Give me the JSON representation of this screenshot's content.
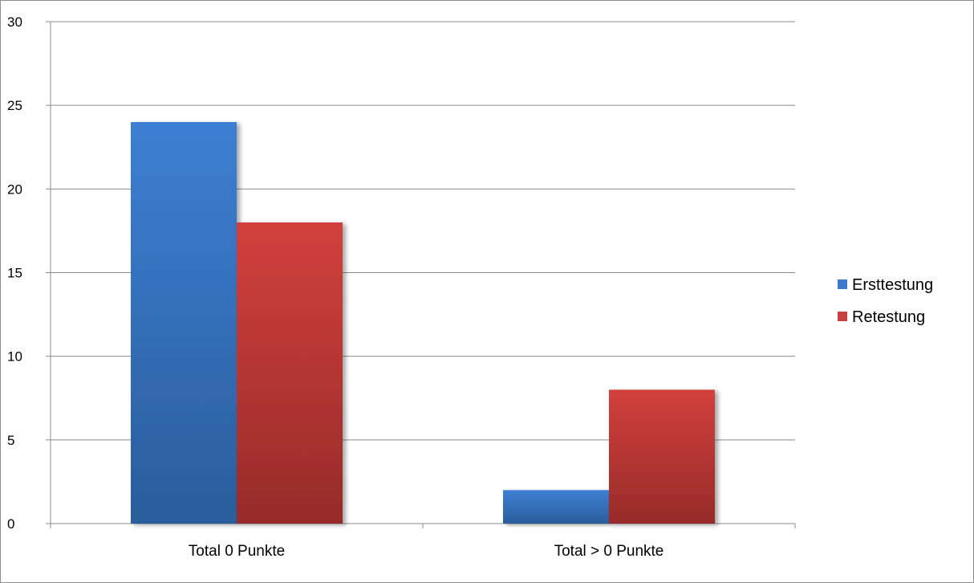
{
  "chart_data": {
    "type": "bar",
    "categories": [
      "Total 0 Punkte",
      "Total > 0 Punkte"
    ],
    "series": [
      {
        "name": "Ersttestung",
        "values": [
          24,
          2
        ],
        "color": "#3d7acd"
      },
      {
        "name": "Retestung",
        "values": [
          18,
          8
        ],
        "color": "#c94040"
      }
    ],
    "title": "",
    "xlabel": "",
    "ylabel": "",
    "ylim": [
      0,
      30
    ],
    "yticks": [
      0,
      5,
      10,
      15,
      20,
      25,
      30
    ],
    "grid": true,
    "legend_position": "right"
  }
}
